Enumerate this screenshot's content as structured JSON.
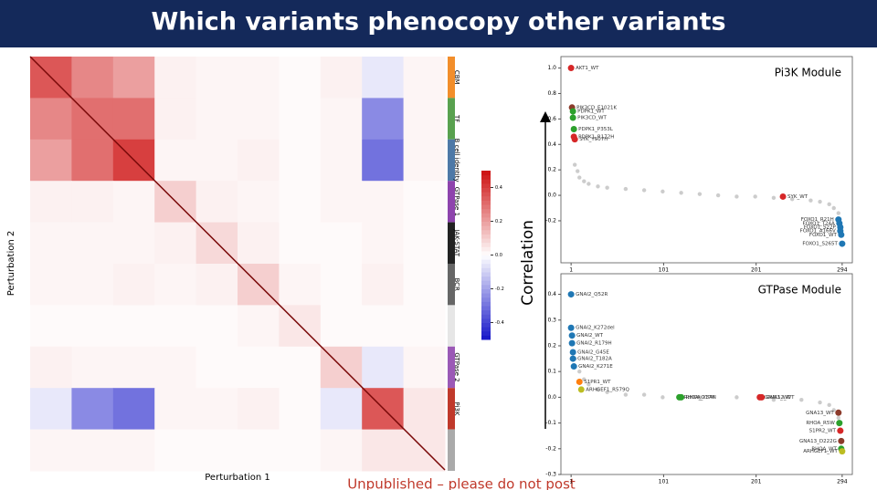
{
  "title": "Which variants phenocopy other variants",
  "footer": "Unpublished – please do not post",
  "y_axis_label": "Correlation",
  "chart_data": [
    {
      "type": "heatmap",
      "xlabel": "Perturbation 1",
      "ylabel": "Perturbation 2",
      "groups": [
        "CBM",
        "TF",
        "B cell identity",
        "GTPase 1",
        "JAK-STAT",
        "BCR",
        null,
        "GTPase 2",
        "Pi3K",
        null
      ],
      "group_colors": [
        "#f28e2b",
        "#59a14f",
        "#4e79a7",
        "#8e44ad",
        "#222222",
        "#666666",
        "#e6e6e6",
        "#9b59b6",
        "#c0392b",
        "#aaaaaa"
      ],
      "matrix": [
        [
          0.35,
          0.25,
          0.2,
          0.03,
          0.02,
          0.02,
          0.01,
          0.03,
          -0.05,
          0.02
        ],
        [
          0.25,
          0.3,
          0.3,
          0.03,
          0.02,
          0.02,
          0.01,
          0.02,
          -0.25,
          0.02
        ],
        [
          0.2,
          0.3,
          0.4,
          0.02,
          0.02,
          0.03,
          0.01,
          0.02,
          -0.3,
          0.02
        ],
        [
          0.03,
          0.03,
          0.02,
          0.1,
          0.03,
          0.02,
          0.01,
          0.02,
          0.02,
          0.01
        ],
        [
          0.02,
          0.02,
          0.02,
          0.03,
          0.08,
          0.03,
          0.01,
          0.01,
          0.02,
          0.01
        ],
        [
          0.02,
          0.02,
          0.03,
          0.02,
          0.03,
          0.1,
          0.02,
          0.01,
          0.03,
          0.01
        ],
        [
          0.01,
          0.01,
          0.01,
          0.01,
          0.01,
          0.02,
          0.05,
          0.01,
          0.01,
          0.01
        ],
        [
          0.03,
          0.02,
          0.02,
          0.02,
          0.01,
          0.01,
          0.01,
          0.1,
          -0.05,
          0.02
        ],
        [
          -0.05,
          -0.25,
          -0.3,
          0.02,
          0.02,
          0.03,
          0.01,
          -0.05,
          0.35,
          0.05
        ],
        [
          0.02,
          0.02,
          0.02,
          0.01,
          0.01,
          0.01,
          0.01,
          0.02,
          0.05,
          0.05
        ]
      ],
      "clim": [
        -0.5,
        0.5
      ],
      "colorbar_ticks": [
        0.4,
        0.2,
        {
          "value": 0,
          "label": "0.0"
        },
        -0.2,
        -0.4
      ]
    },
    {
      "type": "scatter",
      "title": "Pi3K Module",
      "xlim": [
        -10,
        305
      ],
      "ylim": [
        -0.53,
        1.09
      ],
      "xticks": [
        1,
        101,
        201,
        294
      ],
      "yticks": [
        -0.2,
        {
          "value": 0,
          "label": "0.0"
        },
        0.2,
        0.4,
        0.6,
        0.8,
        {
          "value": 1,
          "label": "1.0"
        }
      ],
      "background": {
        "color": "#cccccc",
        "x": [
          5,
          8,
          10,
          15,
          20,
          30,
          40,
          60,
          80,
          100,
          120,
          140,
          160,
          180,
          200,
          220,
          240,
          260,
          270,
          280,
          285,
          290
        ],
        "values": [
          0.24,
          0.19,
          0.14,
          0.11,
          0.09,
          0.07,
          0.06,
          0.05,
          0.04,
          0.03,
          0.02,
          0.01,
          0,
          -0.01,
          -0.01,
          -0.02,
          -0.03,
          -0.04,
          -0.05,
          -0.07,
          -0.1,
          -0.14
        ]
      },
      "highlights": {
        "labels": [
          "AKT1_WT",
          "PIK3CD_E1021K",
          "PDPK1_WT",
          "PIK3CD_WT",
          "PDPK1_P353L",
          "PDPK1_R172H",
          "SYK_Y507H",
          "SYK_WT",
          "FOXO1_R21H",
          "FOXO1_T24A",
          "FOXO1_S22P",
          "FOXO1_A166V",
          "FOXO1_WT",
          "FOXO1_S265T"
        ],
        "x": [
          1,
          2,
          3,
          3,
          4,
          4,
          5,
          230,
          290,
          291,
          292,
          292,
          293,
          294
        ],
        "values": [
          1,
          0.69,
          0.66,
          0.61,
          0.52,
          0.46,
          0.44,
          -0.01,
          -0.19,
          -0.22,
          -0.25,
          -0.28,
          -0.31,
          -0.38
        ],
        "colors": [
          "#d62728",
          "#8c3b2b",
          "#2ca02c",
          "#2ca02c",
          "#2ca02c",
          "#d62728",
          "#d62728",
          "#d62728",
          "#1f77b4",
          "#1f77b4",
          "#1f77b4",
          "#1f77b4",
          "#1f77b4",
          "#1f77b4"
        ]
      }
    },
    {
      "type": "scatter",
      "title": "GTPase Module",
      "xlim": [
        -10,
        305
      ],
      "ylim": [
        -0.3,
        0.48
      ],
      "xticks": [
        1,
        101,
        201,
        294
      ],
      "yticks": [
        -0.3,
        -0.2,
        -0.1,
        {
          "value": 0,
          "label": "0.0"
        },
        0.1,
        0.2,
        0.3,
        0.4
      ],
      "background": {
        "color": "#cccccc",
        "x": [
          5,
          10,
          15,
          20,
          30,
          40,
          60,
          80,
          100,
          140,
          180,
          220,
          250,
          270,
          280,
          285,
          290
        ],
        "values": [
          0.15,
          0.1,
          0.07,
          0.05,
          0.03,
          0.02,
          0.01,
          0.01,
          0,
          0,
          0,
          -0.01,
          -0.01,
          -0.02,
          -0.03,
          -0.05,
          -0.08
        ]
      },
      "highlights": {
        "labels": [
          "GNAI2_Q52R",
          "GNAI2_K272del",
          "GNAI2_WT",
          "GNAI2_R179H",
          "GNAI2_G45E",
          "GNAI2_T182A",
          "GNAI2_K271E",
          "S1PR1_WT",
          "ARHGEF1_R579Q",
          "RHOA_G17V",
          "RHOA_Y34N",
          "GNAI3_WT",
          "GNA12_WT",
          "GNA13_WT",
          "RHOA_R5W",
          "S1PR2_WT",
          "GNA13_D222G",
          "RHOA_WT",
          "ARHGEF1_WT"
        ],
        "x": [
          1,
          1,
          2,
          2,
          3,
          3,
          4,
          10,
          12,
          118,
          120,
          205,
          207,
          290,
          291,
          292,
          293,
          293,
          294
        ],
        "values": [
          0.4,
          0.27,
          0.24,
          0.21,
          0.175,
          0.15,
          0.12,
          0.06,
          0.03,
          0,
          0,
          0,
          0,
          -0.06,
          -0.1,
          -0.13,
          -0.17,
          -0.2,
          -0.21
        ],
        "colors": [
          "#1f77b4",
          "#1f77b4",
          "#1f77b4",
          "#1f77b4",
          "#1f77b4",
          "#1f77b4",
          "#1f77b4",
          "#ff7f0e",
          "#bcbd22",
          "#2ca02c",
          "#2ca02c",
          "#d62728",
          "#d62728",
          "#8c3b2b",
          "#2ca02c",
          "#d62728",
          "#8c3b2b",
          "#2ca02c",
          "#bcbd22"
        ]
      }
    }
  ]
}
